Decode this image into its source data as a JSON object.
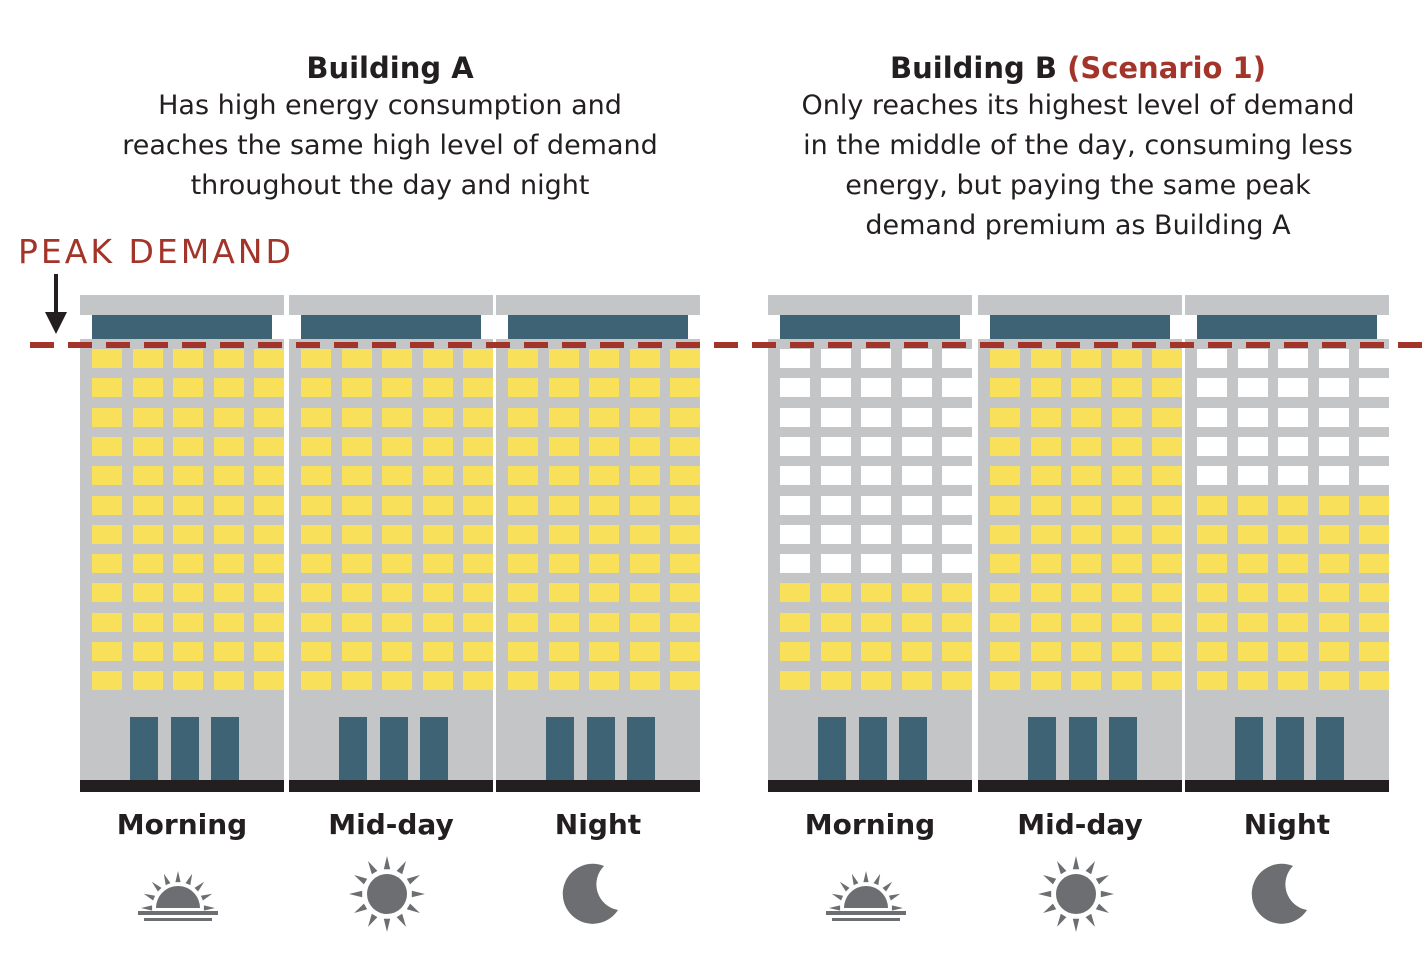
{
  "colors": {
    "accent": "#a3342a",
    "window_lit": "#f9e05a",
    "window_unlit": "#ffffff",
    "building": "#c4c5c7",
    "cap": "#3e6375",
    "base": "#231f20",
    "icon": "#6d6e71"
  },
  "peak_demand": {
    "label": "PEAK DEMAND"
  },
  "groups": [
    {
      "title": "Building A",
      "title_suffix": "",
      "description": [
        "Has high energy consumption and",
        "reaches the same high level of demand",
        "throughout the day and night"
      ],
      "buildings": [
        {
          "label": "Morning",
          "icon": "sunrise-icon",
          "lit_rows_from_bottom": 12
        },
        {
          "label": "Mid-day",
          "icon": "sun-icon",
          "lit_rows_from_bottom": 12
        },
        {
          "label": "Night",
          "icon": "moon-icon",
          "lit_rows_from_bottom": 12
        }
      ]
    },
    {
      "title": "Building B",
      "title_suffix": "(Scenario 1)",
      "description": [
        "Only reaches its highest level of demand",
        "in the middle of the day, consuming less",
        "energy, but paying the same peak",
        "demand premium as Building A"
      ],
      "buildings": [
        {
          "label": "Morning",
          "icon": "sunrise-icon",
          "lit_rows_from_bottom": 4
        },
        {
          "label": "Mid-day",
          "icon": "sun-icon",
          "lit_rows_from_bottom": 12
        },
        {
          "label": "Night",
          "icon": "moon-icon",
          "lit_rows_from_bottom": 7
        }
      ]
    }
  ]
}
